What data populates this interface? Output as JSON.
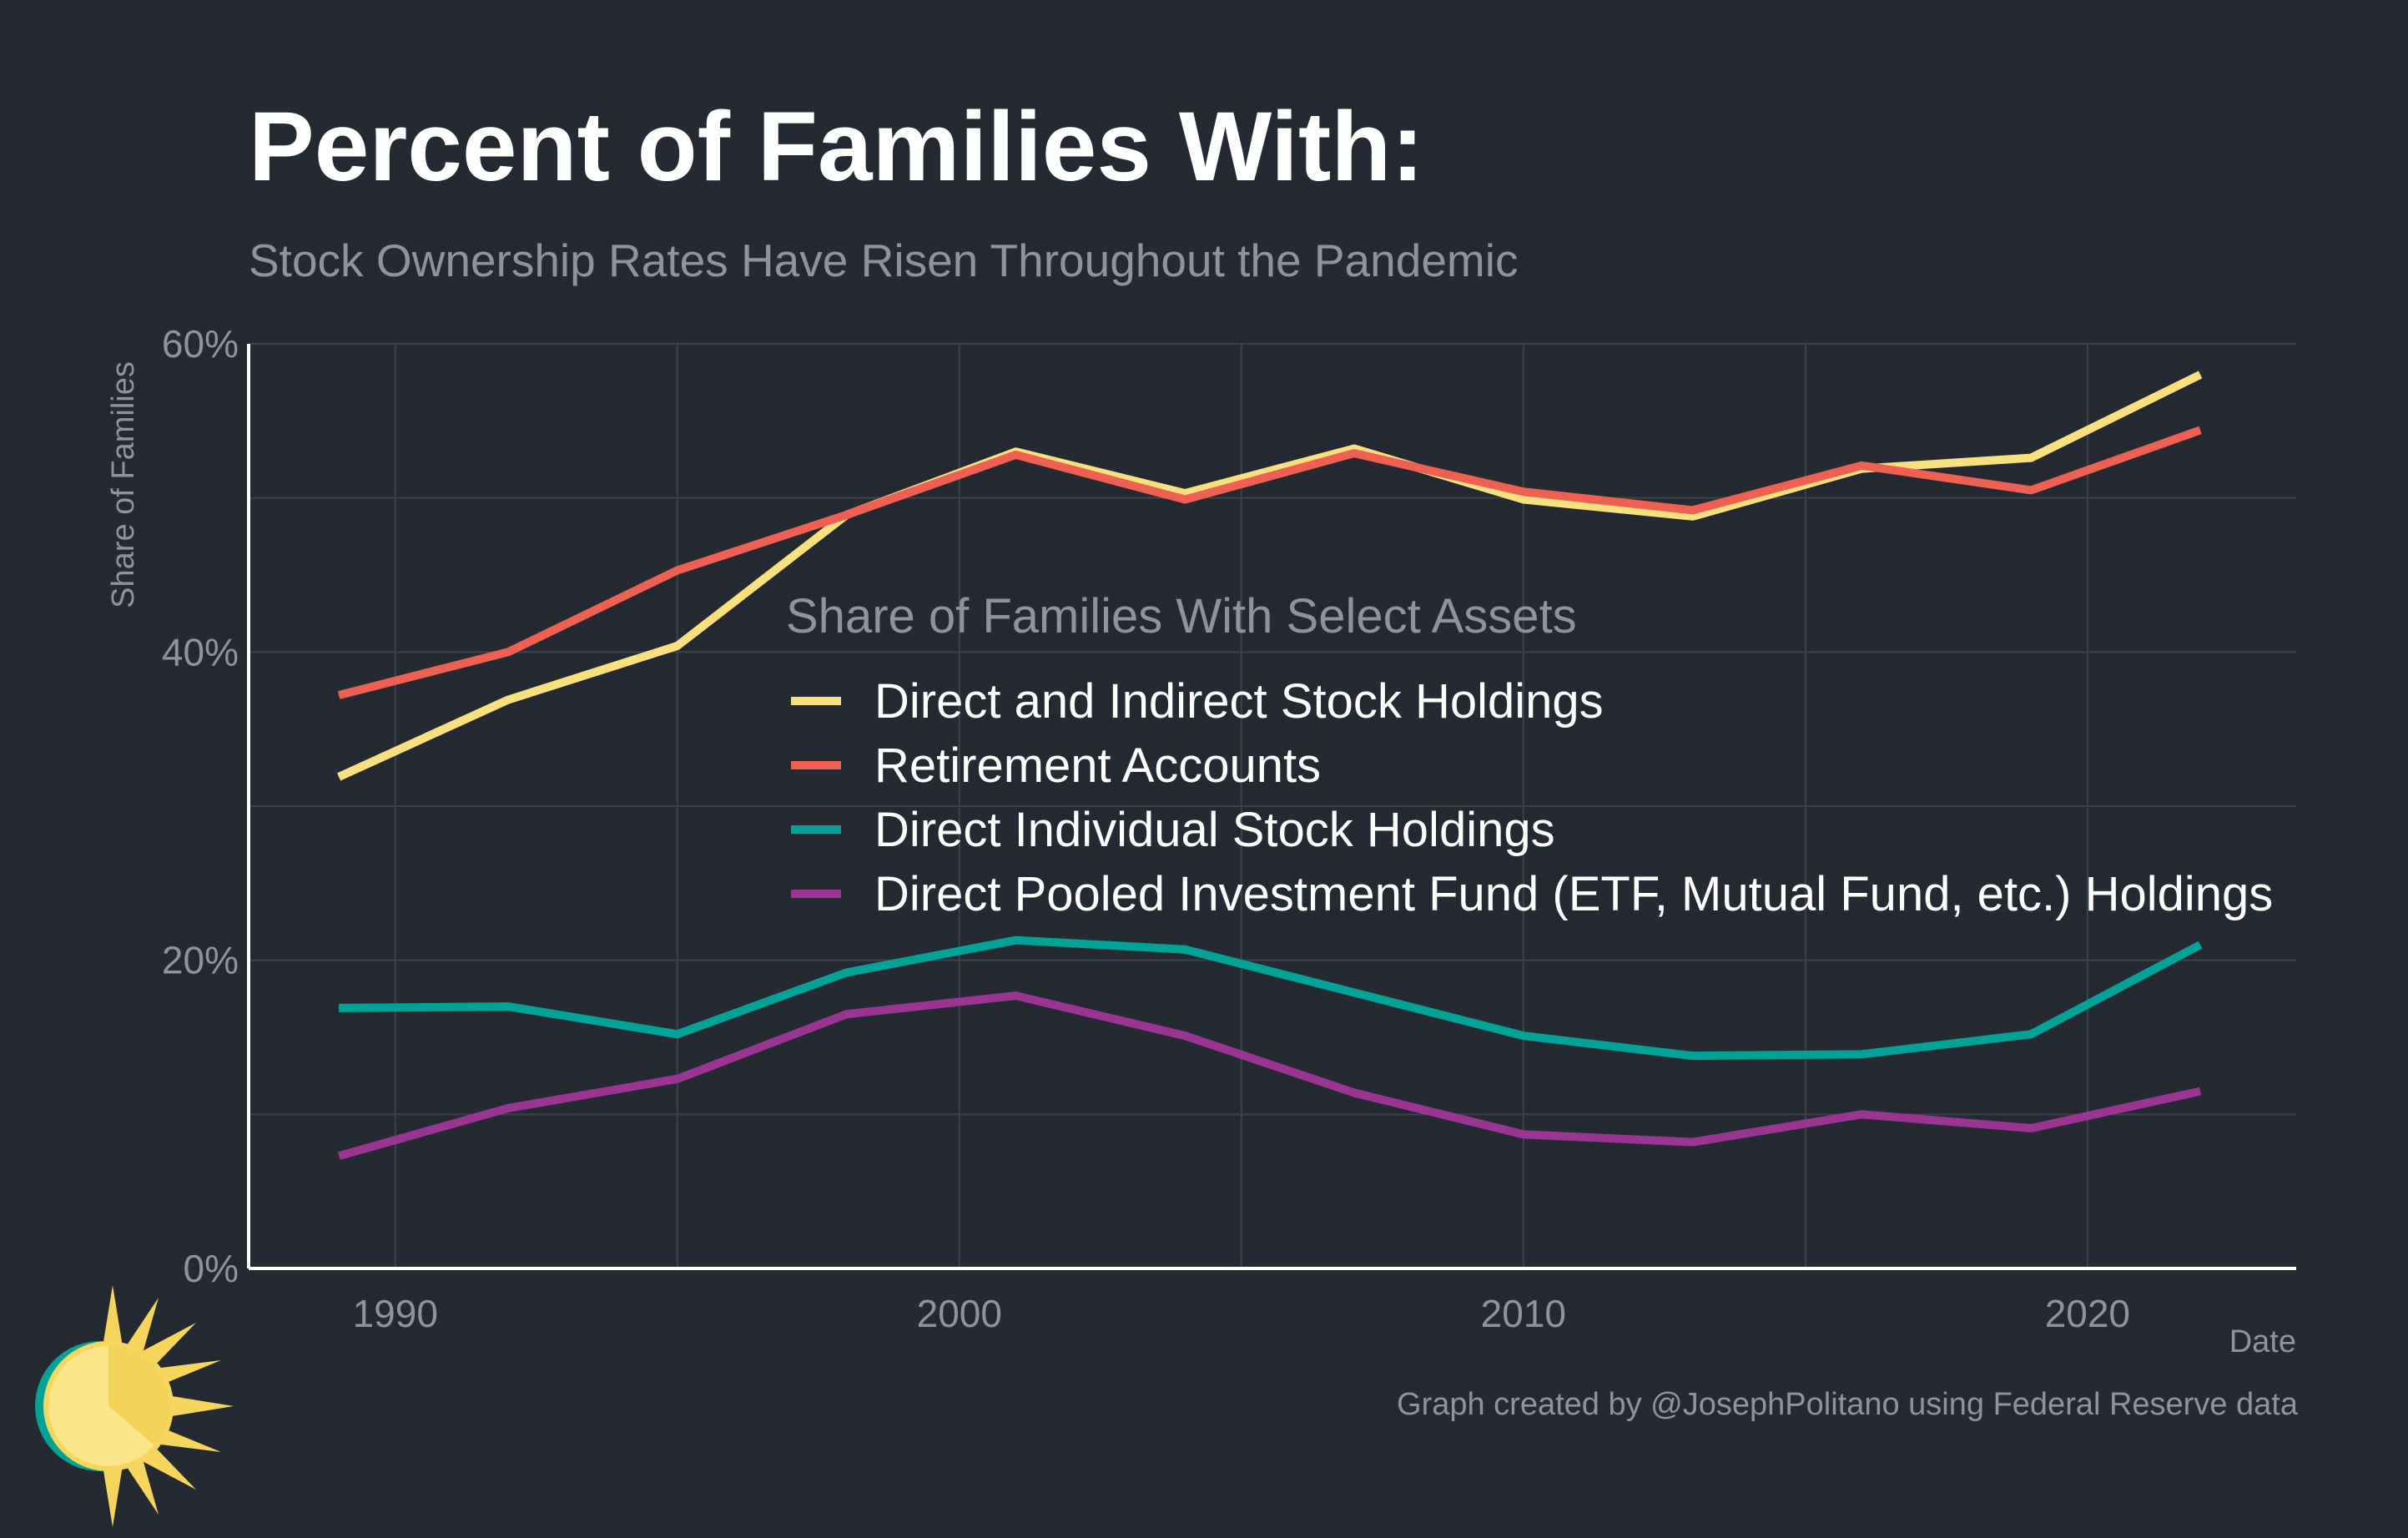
{
  "title": "Percent of Families With:",
  "subtitle": "Stock Ownership Rates Have Risen Throughout the Pandemic",
  "caption": "Graph created by @JosephPolitano using Federal Reserve data",
  "colors": {
    "background": "#252932",
    "grid": "#3d424b",
    "axis": "#ffffff",
    "text_muted": "#8f949c"
  },
  "chart_data": {
    "type": "line",
    "xlabel": "Date",
    "ylabel": "Share of Families",
    "xlim": [
      1987.4,
      2023.7
    ],
    "ylim": [
      0,
      60
    ],
    "x_ticks": [
      1990,
      2000,
      2010,
      2020
    ],
    "x_tick_labels": [
      "1990",
      "2000",
      "2010",
      "2020"
    ],
    "y_ticks": [
      0,
      20,
      40,
      60
    ],
    "y_tick_labels": [
      "0%",
      "20%",
      "40%",
      "60%"
    ],
    "grid": true,
    "legend": {
      "title": "Share of Families With Select Assets",
      "placement": "center"
    },
    "x": [
      1989,
      1992,
      1995,
      1998,
      2001,
      2004,
      2007,
      2010,
      2013,
      2016,
      2019,
      2022
    ],
    "series": [
      {
        "name": "Direct and Indirect Stock Holdings",
        "color": "#f9e07f",
        "values": [
          31.9,
          36.9,
          40.4,
          48.9,
          53.0,
          50.3,
          53.2,
          49.9,
          48.8,
          51.9,
          52.6,
          58.0
        ]
      },
      {
        "name": "Retirement Accounts",
        "color": "#ee6152",
        "values": [
          37.2,
          40.0,
          45.3,
          48.9,
          52.8,
          49.9,
          52.9,
          50.4,
          49.2,
          52.1,
          50.5,
          54.4
        ]
      },
      {
        "name": "Direct Individual Stock Holdings",
        "color": "#00a396",
        "values": [
          16.9,
          17.0,
          15.2,
          19.2,
          21.3,
          20.7,
          17.9,
          15.1,
          13.8,
          13.9,
          15.2,
          21.0
        ]
      },
      {
        "name": "Direct Pooled Investment Fund (ETF, Mutual Fund, etc.) Holdings",
        "color": "#9a3592",
        "values": [
          7.3,
          10.4,
          12.3,
          16.5,
          17.7,
          15.1,
          11.4,
          8.7,
          8.2,
          10.0,
          9.1,
          11.5
        ]
      }
    ]
  }
}
